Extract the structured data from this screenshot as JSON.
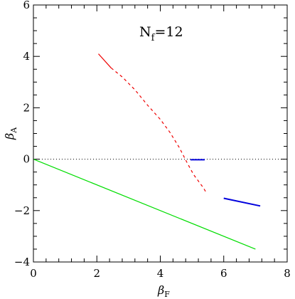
{
  "chart_data": {
    "type": "line",
    "title": "",
    "annotation": {
      "main": "N",
      "sub": "f",
      "value": "=12"
    },
    "xlabel": {
      "main": "β",
      "sub": "F"
    },
    "ylabel": {
      "main": "β",
      "sub": "A"
    },
    "xlim": [
      0,
      8
    ],
    "ylim": [
      -4,
      6
    ],
    "x_ticks": [
      0,
      2,
      4,
      6,
      8
    ],
    "y_ticks": [
      -4,
      -2,
      0,
      2,
      4,
      6
    ],
    "x_tick_labels": [
      "0",
      "2",
      "4",
      "6",
      "8"
    ],
    "y_tick_labels": [
      "−4",
      "−2",
      "0",
      "2",
      "4",
      "6"
    ],
    "grid": false,
    "reference_lines": [
      {
        "y": 0,
        "style": "dotted",
        "color": "#000000"
      }
    ],
    "series": [
      {
        "style": "solid",
        "color": "#00dd00",
        "x": [
          0.0,
          7.0
        ],
        "y": [
          0.0,
          -3.5
        ]
      },
      {
        "style": "solid",
        "color": "#ee0000",
        "x": [
          2.05,
          2.45
        ],
        "y": [
          4.1,
          3.55
        ]
      },
      {
        "style": "dashed",
        "color": "#ee0000",
        "x": [
          2.45,
          2.8,
          3.2,
          3.6,
          4.0,
          4.3,
          4.6,
          4.85,
          5.05,
          5.2,
          5.35,
          5.45
        ],
        "y": [
          3.55,
          3.2,
          2.7,
          2.1,
          1.55,
          1.05,
          0.45,
          -0.15,
          -0.6,
          -0.85,
          -1.1,
          -1.3
        ]
      },
      {
        "style": "solid",
        "color": "#0000dd",
        "x": [
          4.95,
          5.4
        ],
        "y": [
          -0.02,
          -0.02
        ]
      },
      {
        "style": "solid",
        "color": "#0000dd",
        "x": [
          6.0,
          7.15
        ],
        "y": [
          -1.52,
          -1.82
        ]
      }
    ]
  }
}
